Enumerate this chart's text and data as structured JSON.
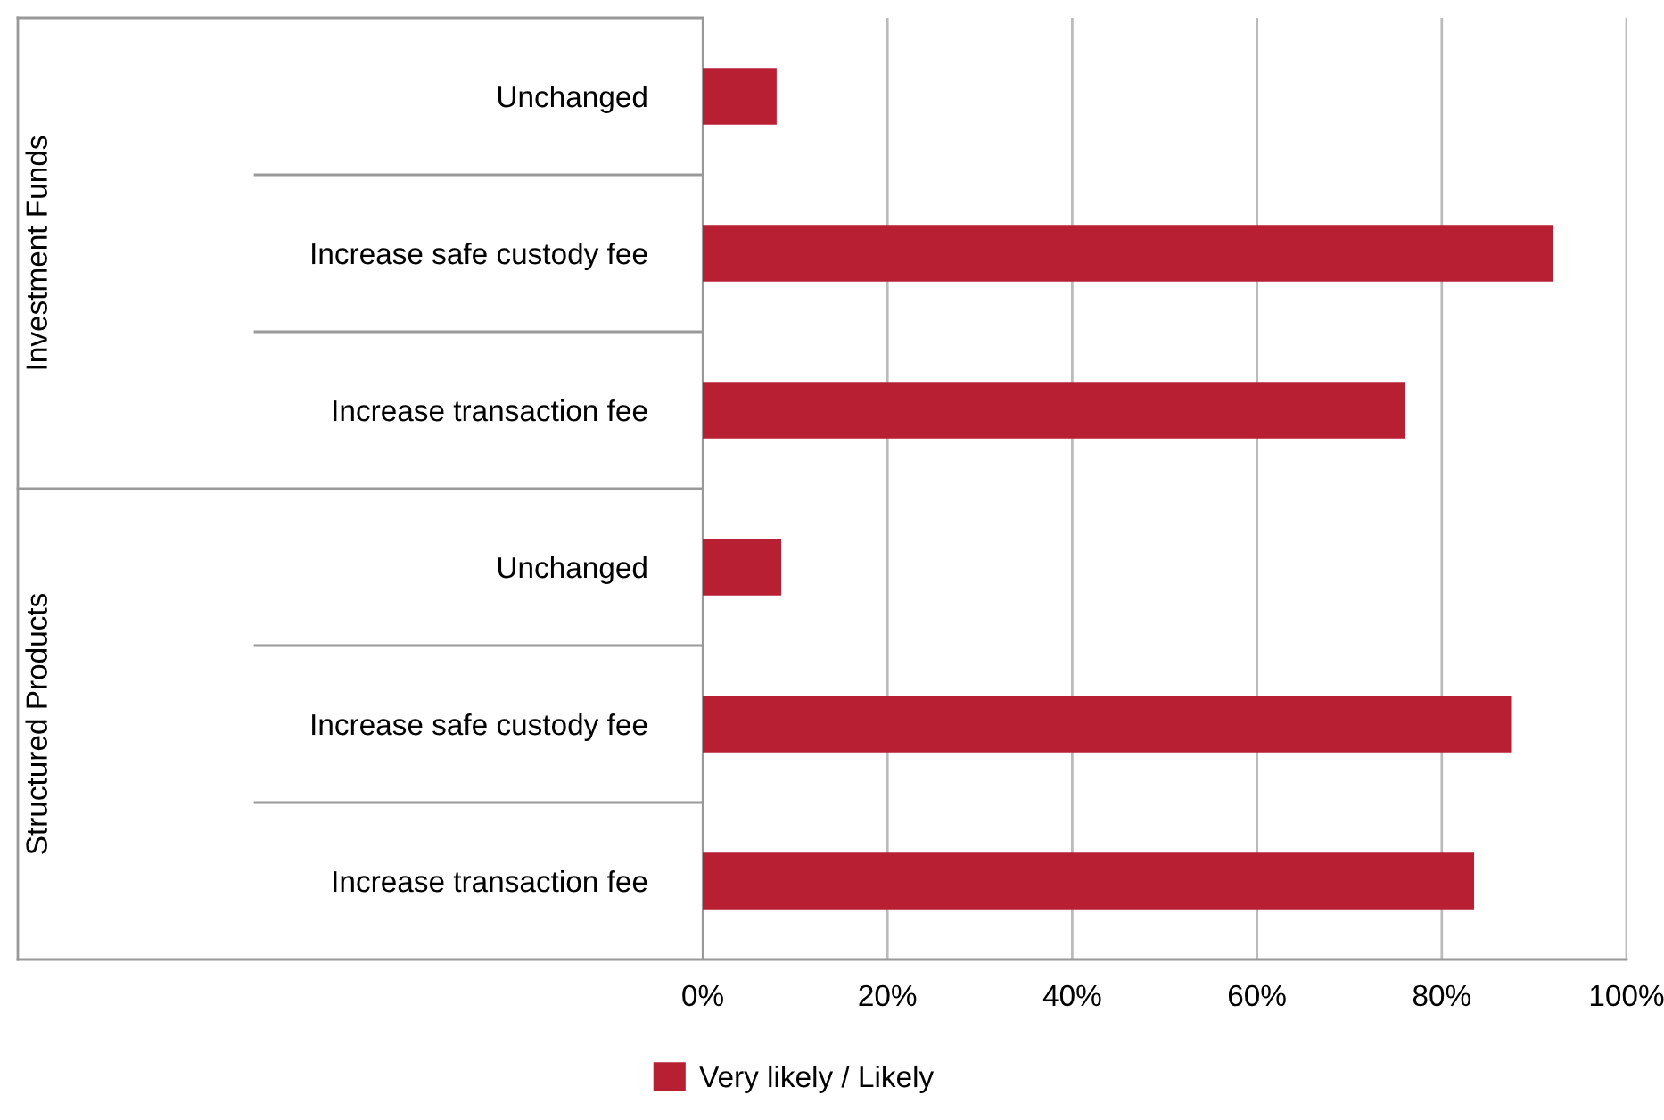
{
  "chart_data": {
    "type": "bar",
    "orientation": "horizontal",
    "categories": [
      "Unchanged",
      "Increase safe custody fee",
      "Increase transaction fee",
      "Unchanged",
      "Increase safe custody fee",
      "Increase transaction fee"
    ],
    "series": [
      {
        "name": "Very likely / Likely",
        "color": "#b81f33",
        "values": [
          8,
          92,
          76,
          8.5,
          87.5,
          83.5
        ]
      }
    ],
    "annotations": [
      "Investment Funds",
      "Structured Products"
    ],
    "xlim": [
      0,
      100
    ],
    "xticks": [
      {
        "value": 0,
        "label": "0%"
      },
      {
        "value": 20,
        "label": "20%"
      },
      {
        "value": 40,
        "label": "40%"
      },
      {
        "value": 60,
        "label": "60%"
      },
      {
        "value": 80,
        "label": "80%"
      },
      {
        "value": 100,
        "label": "100%"
      }
    ],
    "grid": "x",
    "legend": "bottom"
  }
}
